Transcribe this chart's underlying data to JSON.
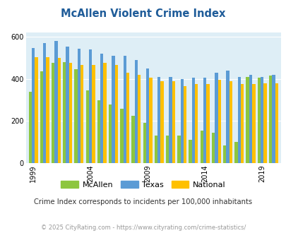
{
  "title": "McAllen Violent Crime Index",
  "years": [
    1999,
    2000,
    2001,
    2002,
    2003,
    2004,
    2005,
    2006,
    2007,
    2008,
    2009,
    2010,
    2011,
    2012,
    2013,
    2014,
    2015,
    2016,
    2017,
    2018,
    2019,
    2020
  ],
  "mcallen": [
    340,
    435,
    475,
    480,
    445,
    345,
    300,
    280,
    260,
    225,
    190,
    130,
    130,
    130,
    110,
    155,
    145,
    85,
    100,
    410,
    405,
    415
  ],
  "texas": [
    548,
    570,
    580,
    555,
    545,
    540,
    520,
    510,
    510,
    490,
    450,
    408,
    408,
    400,
    405,
    405,
    430,
    440,
    408,
    418,
    408,
    418
  ],
  "national": [
    504,
    504,
    500,
    475,
    465,
    465,
    475,
    465,
    430,
    420,
    405,
    390,
    390,
    365,
    375,
    375,
    395,
    390,
    375,
    375,
    380,
    378
  ],
  "mcallen_color": "#8dc63f",
  "texas_color": "#5b9bd5",
  "national_color": "#ffc000",
  "bg_color": "#deeef6",
  "title_color": "#1f5c99",
  "subtitle": "Crime Index corresponds to incidents per 100,000 inhabitants",
  "footer": "© 2025 CityRating.com - https://www.cityrating.com/crime-statistics/",
  "ylim": [
    0,
    620
  ],
  "yticks": [
    0,
    200,
    400,
    600
  ],
  "xtick_years": [
    1999,
    2004,
    2009,
    2014,
    2019
  ]
}
